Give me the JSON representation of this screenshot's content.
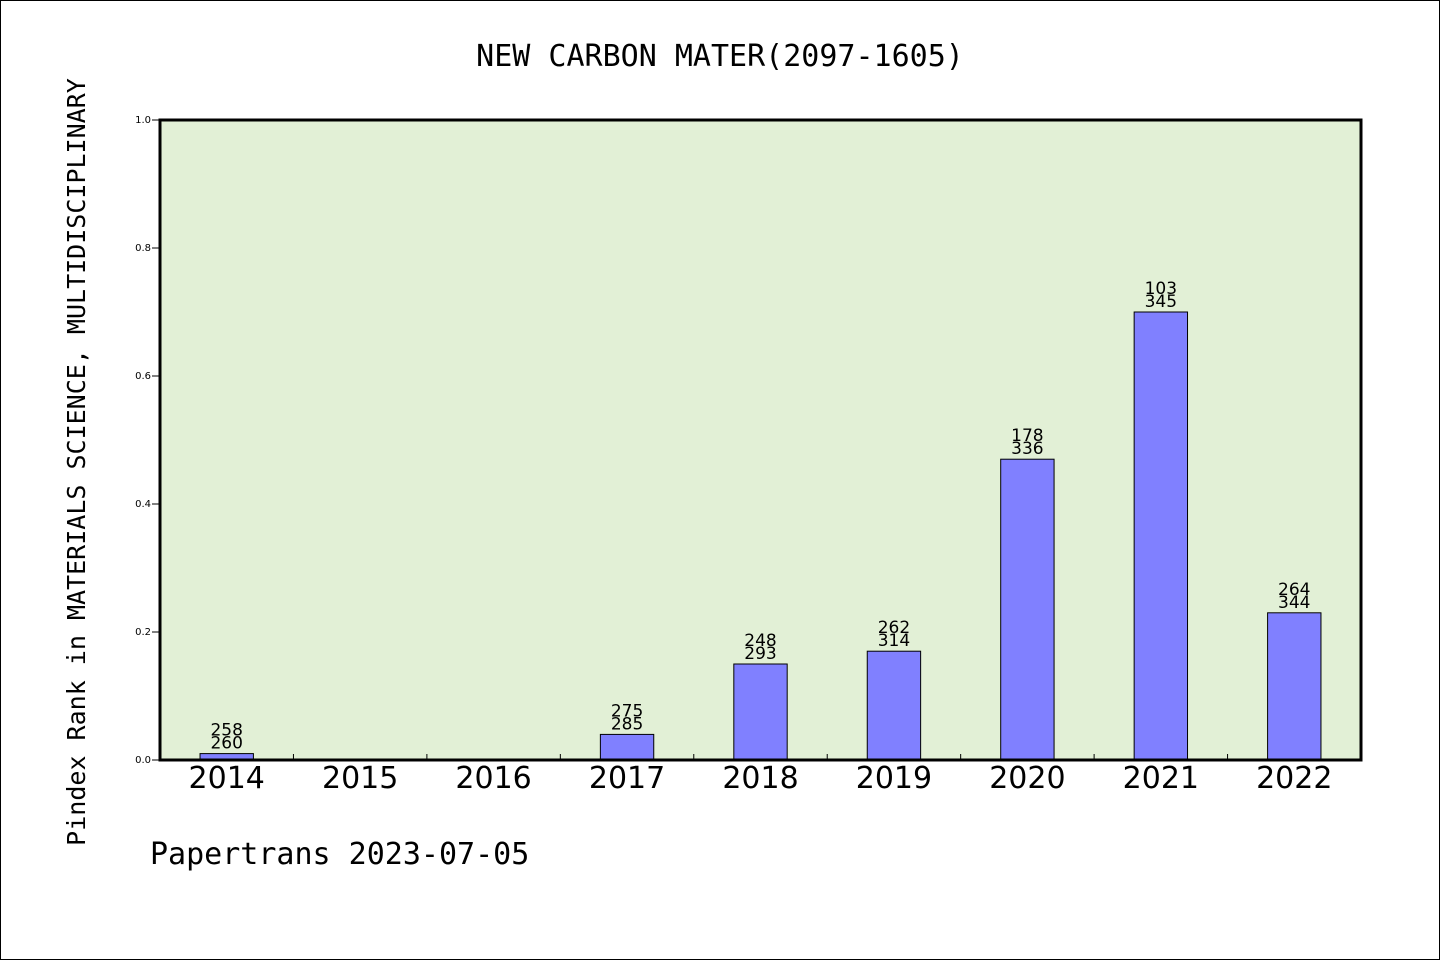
{
  "chart_data": {
    "type": "bar",
    "title": "NEW CARBON MATER(2097-1605)",
    "ylabel": "Pindex Rank in MATERIALS SCIENCE, MULTIDISCIPLINARY",
    "xlabel": "",
    "footer": "Papertrans 2023-07-05",
    "categories": [
      "2014",
      "2015",
      "2016",
      "2017",
      "2018",
      "2019",
      "2020",
      "2021",
      "2022"
    ],
    "values": [
      0.01,
      0,
      0,
      0.04,
      0.15,
      0.17,
      0.47,
      0.7,
      0.23
    ],
    "bar_labels": [
      [
        "258",
        "260"
      ],
      [],
      [],
      [
        "275",
        "285"
      ],
      [
        "248",
        "293"
      ],
      [
        "262",
        "314"
      ],
      [
        "178",
        "336"
      ],
      [
        "103",
        "345"
      ],
      [
        "264",
        "344"
      ]
    ],
    "ylim": [
      0,
      1.0
    ],
    "yticks": [
      "0.0",
      "0.2",
      "0.4",
      "0.6",
      "0.8",
      "1.0"
    ],
    "grid": false,
    "colors": {
      "plot_background": "#e2f0d6",
      "bar_fill": "#8080ff",
      "bar_stroke": "#000000"
    }
  }
}
